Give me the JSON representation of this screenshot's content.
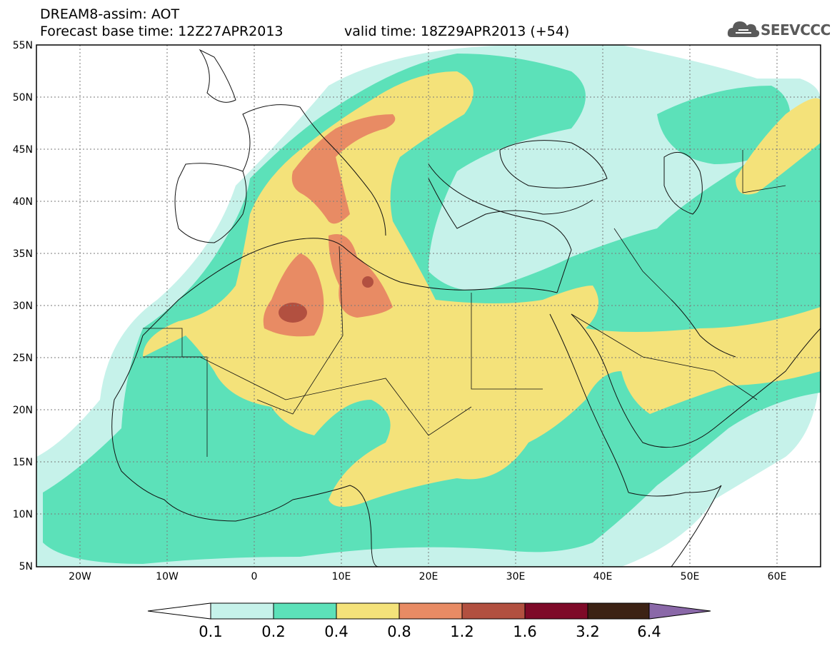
{
  "header": {
    "title_line1": "DREAM8-assim: AOT",
    "title_line2": "Forecast base time: 12Z27APR2013",
    "valid_time": "valid time: 18Z29APR2013 (+54)"
  },
  "logo": {
    "text": "SEEVCCC",
    "icon": "cloud-icon"
  },
  "map": {
    "x_ticks": [
      "20W",
      "10W",
      "0",
      "10E",
      "20E",
      "30E",
      "40E",
      "50E",
      "60E"
    ],
    "y_ticks": [
      "55N",
      "50N",
      "45N",
      "40N",
      "35N",
      "30N",
      "25N",
      "20N",
      "15N",
      "10N",
      "5N"
    ],
    "extent": {
      "lon": [
        -25,
        65
      ],
      "lat": [
        5,
        55
      ]
    }
  },
  "colorbar": {
    "labels": [
      "0.1",
      "0.2",
      "0.4",
      "0.8",
      "1.2",
      "1.6",
      "3.2",
      "6.4"
    ],
    "colors": [
      "#ffffff",
      "#c6f2ea",
      "#5ce1b9",
      "#f4e27a",
      "#e88b64",
      "#b25040",
      "#7e0a28",
      "#3c2214",
      "#8a68a8"
    ]
  },
  "colors": {
    "level_0_1": "#c6f2ea",
    "level_0_2": "#5ce1b9",
    "level_0_4": "#f4e27a",
    "level_0_8": "#e88b64",
    "level_1_2": "#b25040"
  }
}
